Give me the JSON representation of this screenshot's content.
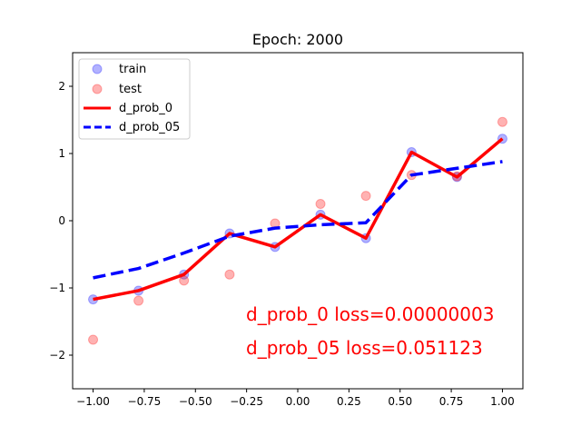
{
  "chart_data": {
    "type": "scatter",
    "title": "Epoch: 2000",
    "xlabel": "",
    "ylabel": "",
    "xlim": [
      -1.1,
      1.1
    ],
    "ylim": [
      -2.5,
      2.5
    ],
    "x_ticks": [
      -1.0,
      -0.75,
      -0.5,
      -0.25,
      0.0,
      0.25,
      0.5,
      0.75,
      1.0
    ],
    "x_tick_labels": [
      "−1.00",
      "−0.75",
      "−0.50",
      "−0.25",
      "0.00",
      "0.25",
      "0.50",
      "0.75",
      "1.00"
    ],
    "y_ticks": [
      -2,
      -1,
      0,
      1,
      2
    ],
    "y_tick_labels": [
      "−2",
      "−1",
      "0",
      "1",
      "2"
    ],
    "grid": false,
    "legend_position": "top-left",
    "x": [
      -1.0,
      -0.778,
      -0.556,
      -0.333,
      -0.111,
      0.111,
      0.333,
      0.556,
      0.778,
      1.0
    ],
    "series": [
      {
        "name": "train",
        "kind": "scatter",
        "color": "#0000ff",
        "values": [
          -1.17,
          -1.04,
          -0.8,
          -0.19,
          -0.39,
          0.09,
          -0.26,
          1.02,
          0.65,
          1.22
        ]
      },
      {
        "name": "test",
        "kind": "scatter",
        "color": "#ff0000",
        "values": [
          -1.77,
          -1.19,
          -0.89,
          -0.8,
          -0.04,
          0.25,
          0.37,
          0.68,
          0.66,
          1.47
        ]
      },
      {
        "name": "d_prob_0",
        "kind": "line",
        "style": "solid",
        "color": "#ff0000",
        "values": [
          -1.17,
          -1.04,
          -0.8,
          -0.19,
          -0.39,
          0.09,
          -0.26,
          1.02,
          0.65,
          1.22
        ]
      },
      {
        "name": "d_prob_05",
        "kind": "line",
        "style": "dashed",
        "color": "#0000ff",
        "values": [
          -0.85,
          -0.71,
          -0.48,
          -0.23,
          -0.11,
          -0.06,
          -0.03,
          0.68,
          0.78,
          0.88
        ]
      }
    ],
    "annotations": [
      {
        "text": "d_prob_0 loss=0.00000003",
        "color": "#ff0000"
      },
      {
        "text": "d_prob_05 loss=0.051123",
        "color": "#ff0000"
      }
    ]
  }
}
